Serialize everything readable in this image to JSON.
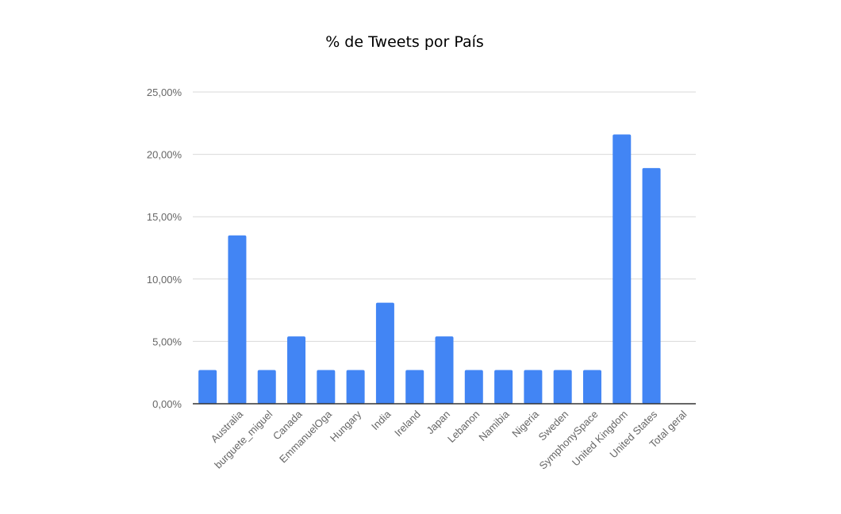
{
  "chart_data": {
    "type": "bar",
    "title": "% de Tweets por País",
    "xlabel": "",
    "ylabel": "",
    "ylim": [
      0,
      25
    ],
    "yticks": [
      "0,00%",
      "5,00%",
      "10,00%",
      "15,00%",
      "20,00%",
      "25,00%"
    ],
    "grid": true,
    "legend": "none",
    "categories": [
      "",
      "Australia",
      "burguete_miguel",
      "Canada",
      "EmmanuelOga",
      "Hungary",
      "India",
      "Ireland",
      "Japan",
      "Lebanon",
      "Namibia",
      "Nigeria",
      "Sweden",
      "SymphonySpace",
      "United Kingdom",
      "United States",
      "Total geral"
    ],
    "values": [
      2.7,
      13.5,
      2.7,
      5.4,
      2.7,
      2.7,
      8.1,
      2.7,
      5.4,
      2.7,
      2.7,
      2.7,
      2.7,
      2.7,
      21.6,
      18.9,
      null
    ],
    "bar_color": "#4285f4",
    "grid_color": "#d9d9d9",
    "axis_color": "#333333"
  }
}
